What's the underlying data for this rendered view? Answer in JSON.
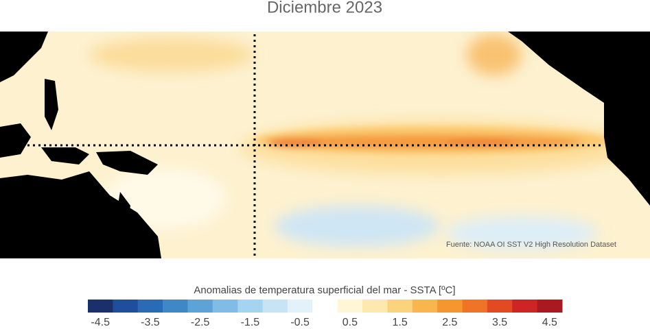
{
  "title": "Diciembre 2023",
  "source": "Fuente: NOAA OI SST V2 High Resolution Dataset",
  "colorbar": {
    "label": "Anomalias de temperatura superficial del mar - SSTA  [ºC]",
    "levels": [
      -4.5,
      -4,
      -3.5,
      -3,
      -2.5,
      -2,
      -1.5,
      -1,
      -0.5,
      0,
      0.5,
      1,
      1.5,
      2,
      2.5,
      3,
      3.5,
      4,
      4.5
    ],
    "colors": [
      "#1b2f6b",
      "#1f4f9c",
      "#2a6bb8",
      "#3f88c8",
      "#5ea3d8",
      "#80bde6",
      "#a4d4f0",
      "#c6e4f5",
      "#e2f2f8",
      "#ffffff",
      "#fff6d5",
      "#fde9ae",
      "#fbd37d",
      "#f9b64f",
      "#f6962f",
      "#f07426",
      "#e24a22",
      "#cf2424",
      "#a81a1f"
    ],
    "ticks": [
      -4.5,
      -3.5,
      -2.5,
      -1.5,
      -0.5,
      0.5,
      1.5,
      2.5,
      3.5,
      4.5
    ]
  }
}
